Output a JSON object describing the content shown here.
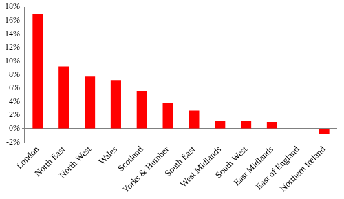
{
  "chart_data": {
    "type": "bar",
    "categories": [
      "London",
      "North East",
      "North West",
      "Wales",
      "Scotland",
      "Yorks & Humber",
      "South East",
      "West Midlands",
      "South West",
      "East Midlands",
      "East of England",
      "Northern Ireland"
    ],
    "values": [
      16.9,
      9.2,
      7.7,
      7.2,
      5.6,
      3.8,
      2.7,
      1.2,
      1.2,
      1.0,
      0,
      -0.8
    ],
    "color": "#ff0000",
    "ylim": [
      -2,
      18
    ],
    "yticks": [
      {
        "value": -2,
        "label": "-2%"
      },
      {
        "value": 0,
        "label": "0%"
      },
      {
        "value": 2,
        "label": "2%"
      },
      {
        "value": 4,
        "label": "4%"
      },
      {
        "value": 6,
        "label": "6%"
      },
      {
        "value": 8,
        "label": "8%"
      },
      {
        "value": 10,
        "label": "10%"
      },
      {
        "value": 12,
        "label": "12%"
      },
      {
        "value": 14,
        "label": "14%"
      },
      {
        "value": 16,
        "label": "16%"
      },
      {
        "value": 18,
        "label": "18%"
      }
    ],
    "grid": false
  }
}
